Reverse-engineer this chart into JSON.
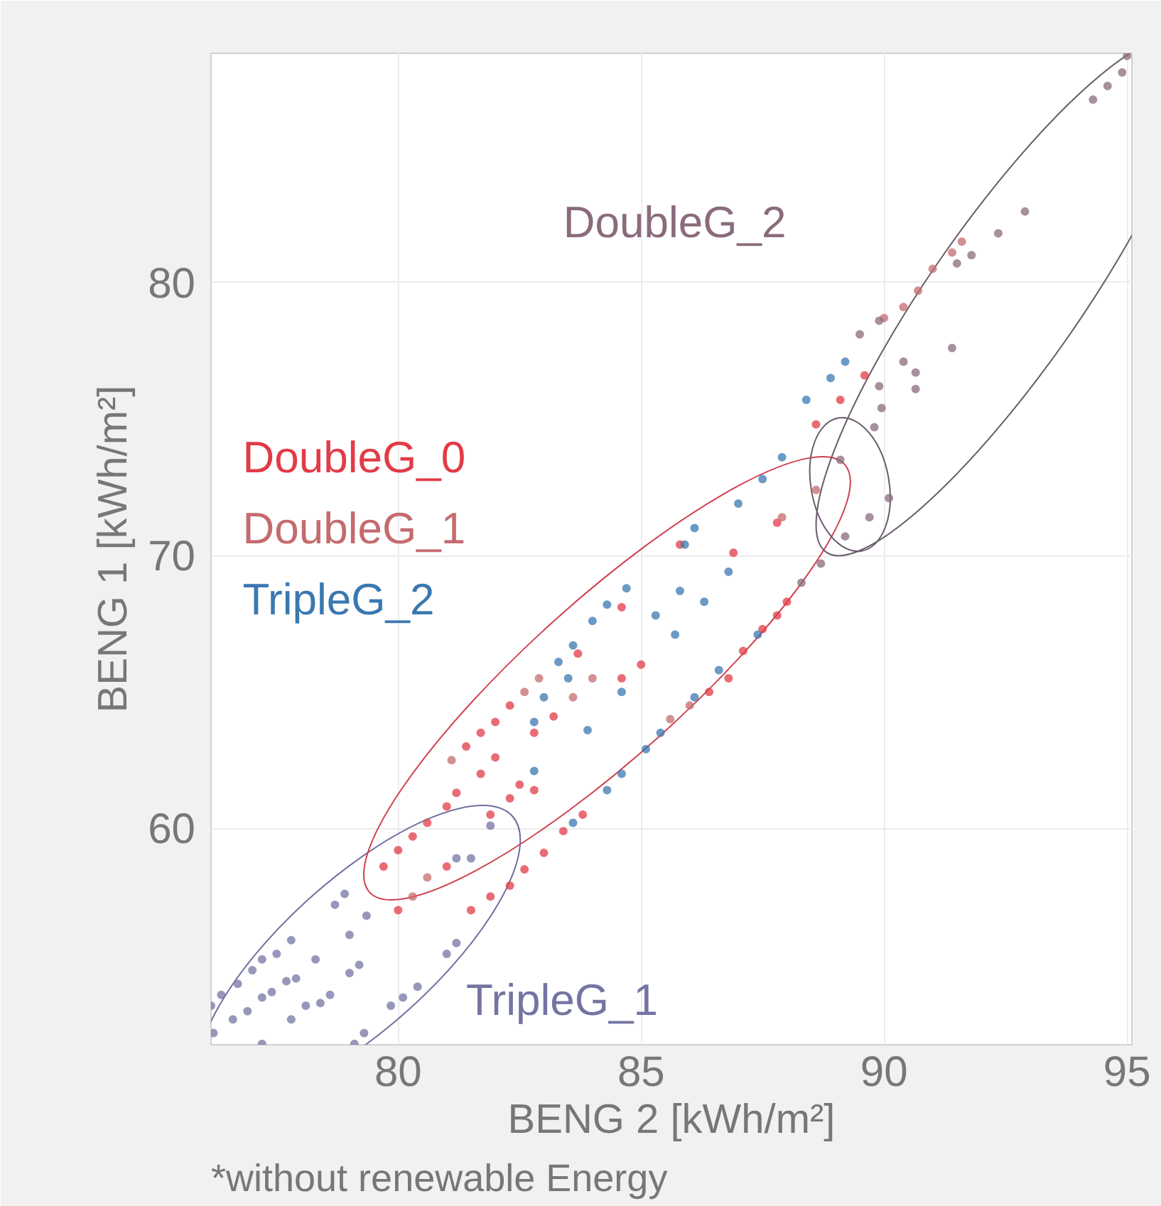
{
  "chart_data": {
    "type": "scatter",
    "xlabel": "BENG 2 [kWh/m²]",
    "ylabel": "BENG 1 [kWh/m²]",
    "annotations": [
      "*without renewable Energy"
    ],
    "xlim": [
      76.15,
      95.1
    ],
    "ylim": [
      52.07,
      88.4
    ],
    "xticks": [
      80,
      85,
      90,
      95
    ],
    "yticks": [
      60,
      70,
      80
    ],
    "grid": true,
    "marker": "circle",
    "series": [
      {
        "name": "DoubleG_0",
        "color": "#e23b47",
        "x": [
          79.7,
          80.0,
          80.3,
          80.6,
          81.0,
          81.4,
          81.7,
          82.0,
          82.3,
          81.2,
          81.7,
          82.0,
          81.9,
          82.3,
          82.5,
          82.8,
          82.8,
          83.2,
          83.7,
          84.6,
          80.0,
          81.0,
          81.5,
          81.9,
          82.3,
          82.6,
          83.0,
          83.4,
          83.8,
          86.4,
          86.8,
          87.1,
          87.5,
          87.8,
          88.0,
          84.6,
          85.0,
          85.8,
          86.9,
          87.8,
          87.9,
          88.6,
          89.1,
          89.6
        ],
        "values": [
          58.6,
          59.2,
          59.7,
          60.2,
          60.8,
          63.0,
          63.5,
          63.9,
          64.5,
          61.3,
          62.0,
          62.6,
          60.5,
          61.1,
          61.6,
          61.4,
          63.5,
          64.1,
          66.4,
          68.1,
          57.0,
          58.6,
          57.0,
          57.5,
          57.9,
          58.5,
          59.1,
          59.9,
          60.5,
          65.0,
          65.5,
          66.5,
          67.3,
          67.8,
          68.3,
          65.5,
          66.0,
          70.4,
          70.1,
          71.2,
          null,
          74.8,
          75.7,
          76.6
        ]
      },
      {
        "name": "DoubleG_1",
        "color": "#c46b6e",
        "x": [
          80.3,
          80.6,
          81.1,
          82.6,
          82.9,
          83.6,
          84.0,
          85.6,
          86.0,
          87.9,
          88.6,
          90.0,
          90.4,
          90.7,
          91.0,
          91.4,
          91.6
        ],
        "values": [
          57.5,
          58.2,
          62.5,
          65.0,
          65.5,
          64.8,
          65.5,
          64.0,
          64.5,
          71.4,
          72.4,
          78.7,
          79.1,
          79.7,
          80.5,
          81.1,
          81.5
        ]
      },
      {
        "name": "TripleG_2",
        "color": "#3a78b0",
        "x": [
          86.1,
          85.9,
          84.7,
          84.3,
          84.0,
          83.6,
          83.3,
          83.0,
          82.8,
          82.8,
          83.5,
          83.9,
          84.6,
          85.3,
          85.7,
          85.8,
          86.3,
          86.8,
          85.1,
          85.4,
          84.6,
          84.3,
          83.6,
          86.1,
          86.6,
          87.4,
          88.4,
          88.9,
          89.2,
          87.5,
          87.9,
          87.0
        ],
        "values": [
          71.0,
          70.4,
          68.8,
          68.2,
          67.6,
          66.7,
          66.1,
          64.8,
          63.9,
          62.1,
          65.5,
          63.6,
          65.0,
          67.8,
          67.1,
          68.7,
          68.3,
          69.4,
          62.9,
          63.5,
          62.0,
          61.4,
          60.2,
          64.8,
          65.8,
          67.1,
          75.7,
          76.5,
          77.1,
          72.8,
          73.6,
          71.9
        ]
      },
      {
        "name": "DoubleG_2",
        "color": "#8a6b7c",
        "x": [
          95.0,
          94.9,
          94.6,
          94.3,
          92.9,
          92.35,
          91.8,
          91.5,
          91.4,
          90.65,
          90.65,
          90.4,
          89.9,
          89.95,
          89.8,
          89.1,
          90.1,
          89.7,
          89.5,
          89.9,
          89.2,
          88.7,
          88.3
        ],
        "values": [
          88.3,
          87.7,
          87.2,
          86.7,
          82.6,
          81.8,
          81.0,
          80.7,
          77.6,
          76.1,
          76.7,
          77.1,
          76.2,
          75.4,
          74.7,
          73.5,
          72.1,
          71.4,
          78.1,
          78.6,
          70.7,
          69.7,
          69.0
        ]
      },
      {
        "name": "TripleG_1",
        "color": "#7474a4",
        "x": [
          76.15,
          76.36,
          76.7,
          77.0,
          77.2,
          77.5,
          77.8,
          76.2,
          76.6,
          76.9,
          77.2,
          77.4,
          77.7,
          77.9,
          77.2,
          77.8,
          78.1,
          78.4,
          78.6,
          79.0,
          79.2,
          78.3,
          78.7,
          78.9,
          79.35,
          79.0,
          79.1,
          79.3,
          79.85,
          80.1,
          80.4,
          81.0,
          81.2,
          81.2,
          81.5,
          81.9
        ],
        "values": [
          53.5,
          53.9,
          54.3,
          54.8,
          55.2,
          55.4,
          55.9,
          52.5,
          53.0,
          53.3,
          53.8,
          54.0,
          54.4,
          54.5,
          52.1,
          53.0,
          53.5,
          53.6,
          53.9,
          54.7,
          55.0,
          55.2,
          57.2,
          57.6,
          56.8,
          56.1,
          52.1,
          52.5,
          53.5,
          53.8,
          54.2,
          55.4,
          55.8,
          58.9,
          58.9,
          60.1
        ]
      }
    ]
  }
}
